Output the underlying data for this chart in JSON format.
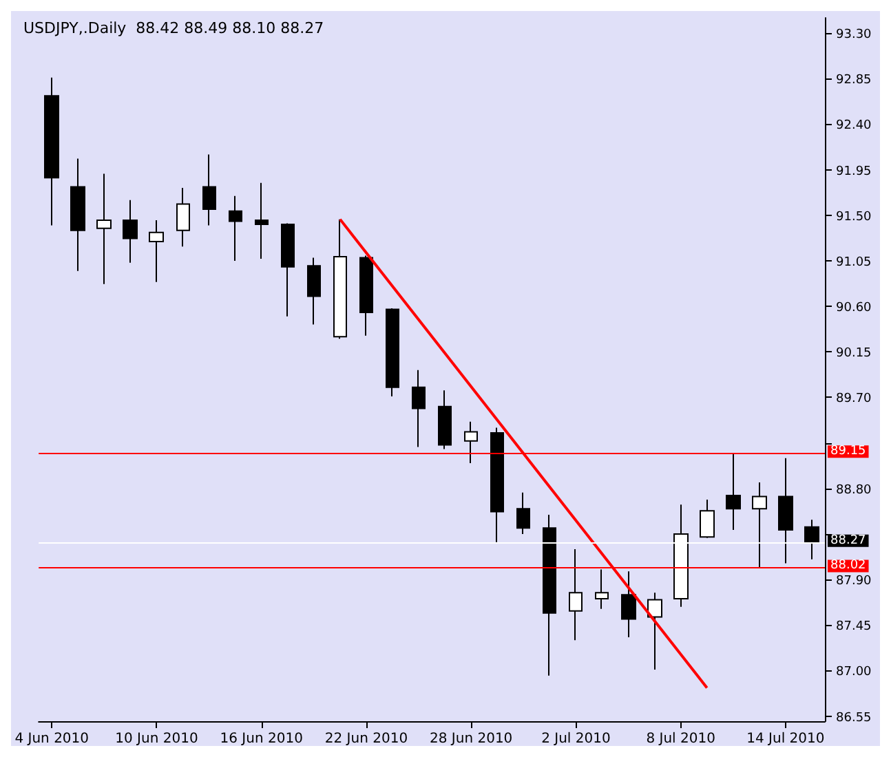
{
  "chart_data": {
    "type": "candlestick",
    "title": "USDJPY,.Daily  88.42 88.49 88.10 88.27",
    "categories": [
      "4 Jun 2010",
      null,
      null,
      null,
      "10 Jun 2010",
      null,
      null,
      null,
      "16 Jun 2010",
      null,
      null,
      null,
      "22 Jun 2010",
      null,
      null,
      null,
      "28 Jun 2010",
      null,
      null,
      null,
      "2 Jul 2010",
      null,
      null,
      null,
      "8 Jul 2010",
      null,
      null,
      null,
      "14 Jul 2010",
      null
    ],
    "ohlc": [
      [
        92.68,
        92.86,
        91.4,
        91.87
      ],
      [
        91.78,
        92.06,
        90.95,
        91.35
      ],
      [
        91.37,
        91.91,
        90.82,
        91.45
      ],
      [
        91.45,
        91.65,
        91.03,
        91.27
      ],
      [
        91.24,
        91.45,
        90.84,
        91.33
      ],
      [
        91.35,
        91.77,
        91.19,
        91.61
      ],
      [
        91.78,
        92.1,
        91.4,
        91.56
      ],
      [
        91.54,
        91.69,
        91.05,
        91.44
      ],
      [
        91.45,
        91.82,
        91.07,
        91.41
      ],
      [
        91.41,
        91.42,
        90.5,
        90.99
      ],
      [
        91.0,
        91.08,
        90.42,
        90.7
      ],
      [
        90.3,
        91.46,
        90.28,
        91.09
      ],
      [
        91.08,
        91.1,
        90.31,
        90.54
      ],
      [
        90.57,
        90.58,
        89.71,
        89.8
      ],
      [
        89.8,
        89.97,
        89.21,
        89.59
      ],
      [
        89.61,
        89.77,
        89.19,
        89.23
      ],
      [
        89.27,
        89.46,
        89.05,
        89.36
      ],
      [
        89.35,
        89.4,
        88.27,
        88.57
      ],
      [
        88.6,
        88.76,
        88.35,
        88.41
      ],
      [
        88.41,
        88.54,
        86.95,
        87.57
      ],
      [
        87.59,
        88.2,
        87.3,
        87.77
      ],
      [
        87.71,
        88.0,
        87.61,
        87.77
      ],
      [
        87.75,
        87.98,
        87.33,
        87.51
      ],
      [
        87.53,
        87.77,
        87.01,
        87.7
      ],
      [
        87.71,
        88.64,
        87.63,
        88.35
      ],
      [
        88.32,
        88.69,
        88.31,
        88.58
      ],
      [
        88.73,
        89.15,
        88.39,
        88.6
      ],
      [
        88.6,
        88.86,
        88.02,
        88.72
      ],
      [
        88.72,
        89.1,
        88.06,
        88.39
      ],
      [
        88.42,
        88.49,
        88.1,
        88.27
      ]
    ],
    "colors": [
      "#000000",
      "#000000",
      "#ffffff",
      "#000000",
      "#ffffff",
      "#ffffff",
      "#000000",
      "#000000",
      "#000000",
      "#000000",
      "#000000",
      "#ffffff",
      "#000000",
      "#000000",
      "#000000",
      "#000000",
      "#ffffff",
      "#000000",
      "#000000",
      "#000000",
      "#ffffff",
      "#ffffff",
      "#000000",
      "#ffffff",
      "#ffffff",
      "#ffffff",
      "#000000",
      "#ffffff",
      "#000000",
      "#000000"
    ],
    "series": [
      {
        "type": "line",
        "color": "#ff0000",
        "values": [
          null,
          null,
          null,
          null,
          null,
          null,
          null,
          null,
          null,
          null,
          null,
          91.46,
          null,
          null,
          null,
          null,
          null,
          null,
          null,
          null,
          null,
          null,
          null,
          null,
          null,
          86.83,
          null,
          null,
          null,
          null
        ]
      }
    ],
    "ylim": [
      86.5,
      93.45
    ],
    "yticks": [
      86.55,
      {
        "value": 87,
        "label": "87.00"
      },
      87.45,
      {
        "value": 87.9,
        "label": "87.90"
      },
      {
        "value": 88.35,
        "label": null
      },
      {
        "value": 88.8,
        "label": "88.80"
      },
      {
        "value": 89.25,
        "label": null
      },
      {
        "value": 89.7,
        "label": "89.70"
      },
      90.15,
      {
        "value": 90.6,
        "label": "90.60"
      },
      91.05,
      {
        "value": 91.5,
        "label": "91.50"
      },
      91.95,
      {
        "value": 92.4,
        "label": "92.40"
      },
      92.85,
      {
        "value": 93.3,
        "label": "93.30"
      }
    ],
    "ref_lines": [
      {
        "axis": "y",
        "value": 89.15,
        "label": "89.15",
        "color": "#ff0000"
      },
      {
        "axis": "y",
        "value": 88.02,
        "label": "88.02",
        "color": "#ff0000"
      },
      {
        "axis": "y",
        "value": 88.27,
        "label": "88.27",
        "color": "#ffffff"
      }
    ],
    "grid": false
  }
}
